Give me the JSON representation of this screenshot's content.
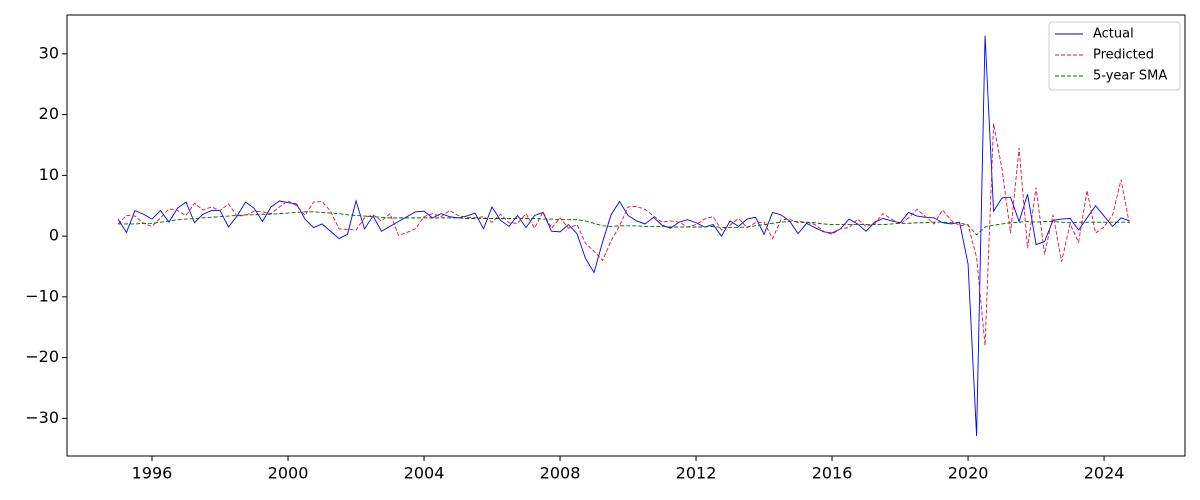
{
  "chart_data": {
    "type": "line",
    "x": [
      1995,
      1995.25,
      1995.5,
      1995.75,
      1996,
      1996.25,
      1996.5,
      1996.75,
      1997,
      1997.25,
      1997.5,
      1997.75,
      1998,
      1998.25,
      1998.5,
      1998.75,
      1999,
      1999.25,
      1999.5,
      1999.75,
      2000,
      2000.25,
      2000.5,
      2000.75,
      2001,
      2001.25,
      2001.5,
      2001.75,
      2002,
      2002.25,
      2002.5,
      2002.75,
      2003,
      2003.25,
      2003.5,
      2003.75,
      2004,
      2004.25,
      2004.5,
      2004.75,
      2005,
      2005.25,
      2005.5,
      2005.75,
      2006,
      2006.25,
      2006.5,
      2006.75,
      2007,
      2007.25,
      2007.5,
      2007.75,
      2008,
      2008.25,
      2008.5,
      2008.75,
      2009,
      2009.25,
      2009.5,
      2009.75,
      2010,
      2010.25,
      2010.5,
      2010.75,
      2011,
      2011.25,
      2011.5,
      2011.75,
      2012,
      2012.25,
      2012.5,
      2012.75,
      2013,
      2013.25,
      2013.5,
      2013.75,
      2014,
      2014.25,
      2014.5,
      2014.75,
      2015,
      2015.25,
      2015.5,
      2015.75,
      2016,
      2016.25,
      2016.5,
      2016.75,
      2017,
      2017.25,
      2017.5,
      2017.75,
      2018,
      2018.25,
      2018.5,
      2018.75,
      2019,
      2019.25,
      2019.5,
      2019.75,
      2020,
      2020.25,
      2020.5,
      2020.75,
      2021,
      2021.25,
      2021.5,
      2021.75,
      2022,
      2022.25,
      2022.5,
      2022.75,
      2023,
      2023.25,
      2023.5,
      2023.75,
      2024,
      2024.25,
      2024.5,
      2024.75
    ],
    "series": [
      {
        "name": "Actual",
        "color": "#0000ff",
        "dash": "none",
        "values": [
          2.8,
          0.6,
          4.2,
          3.6,
          2.8,
          4.2,
          2.3,
          4.6,
          5.6,
          2.2,
          3.6,
          4.2,
          4.2,
          1.5,
          3.3,
          5.6,
          4.6,
          2.4,
          4.8,
          5.8,
          5.5,
          5.3,
          2.8,
          1.4,
          2.0,
          0.8,
          -0.4,
          0.3,
          5.8,
          1.2,
          3.3,
          0.8,
          1.6,
          2.4,
          3.2,
          4.0,
          4.1,
          3.0,
          3.7,
          3.2,
          3.0,
          3.3,
          3.8,
          1.2,
          4.8,
          2.6,
          1.6,
          3.4,
          1.4,
          3.4,
          3.9,
          0.8,
          0.7,
          1.9,
          0.4,
          -3.7,
          -6.0,
          -1.0,
          3.5,
          5.7,
          3.4,
          2.5,
          2.0,
          3.1,
          1.8,
          1.3,
          2.3,
          2.7,
          2.2,
          1.5,
          1.9,
          0.0,
          2.5,
          1.6,
          2.8,
          3.1,
          0.3,
          3.9,
          3.5,
          2.5,
          0.4,
          2.1,
          1.4,
          0.7,
          0.5,
          1.2,
          2.8,
          2.0,
          0.8,
          2.3,
          2.9,
          2.5,
          2.2,
          3.9,
          3.3,
          3.1,
          3.0,
          2.2,
          2.0,
          2.3,
          -4.6,
          -32.9,
          33.0,
          4.1,
          6.3,
          6.4,
          2.4,
          6.9,
          -1.4,
          -0.9,
          2.6,
          2.8,
          2.9,
          1.0,
          3.0,
          5.0,
          3.3,
          1.6,
          3.0,
          2.5
        ]
      },
      {
        "name": "Predicted",
        "color": "#dc143c",
        "dash": "4 2",
        "values": [
          2.0,
          3.4,
          3.3,
          2.1,
          1.6,
          3.0,
          4.5,
          4.2,
          3.4,
          5.4,
          4.3,
          4.8,
          4.2,
          5.3,
          3.3,
          3.4,
          4.1,
          4.0,
          3.7,
          4.8,
          5.8,
          5.0,
          3.4,
          5.6,
          5.7,
          4.1,
          1.2,
          1.1,
          1.0,
          3.0,
          3.5,
          2.5,
          3.7,
          0.1,
          0.6,
          1.2,
          3.2,
          3.7,
          3.2,
          4.2,
          3.4,
          3.1,
          3.0,
          3.2,
          2.3,
          3.6,
          2.2,
          2.1,
          3.7,
          1.3,
          4.0,
          1.3,
          3.0,
          1.3,
          1.9,
          -1.2,
          -2.5,
          -4.0,
          -0.8,
          1.7,
          4.8,
          4.9,
          4.4,
          3.3,
          2.3,
          2.5,
          2.3,
          1.5,
          1.9,
          2.8,
          3.2,
          1.0,
          1.8,
          2.9,
          1.4,
          2.2,
          2.3,
          -0.4,
          2.7,
          2.8,
          2.2,
          2.3,
          1.9,
          0.8,
          0.3,
          1.2,
          1.4,
          2.8,
          1.6,
          2.0,
          3.7,
          2.8,
          2.0,
          3.0,
          4.4,
          3.2,
          2.0,
          4.3,
          2.6,
          1.7,
          1.9,
          -3.5,
          -18.0,
          18.5,
          11.0,
          0.5,
          14.5,
          -2.0,
          8.0,
          -3.0,
          3.5,
          -4.2,
          2.0,
          -1.0,
          7.5,
          0.5,
          1.5,
          3.5,
          9.3,
          1.8
        ]
      },
      {
        "name": "5-year SMA",
        "color": "#006400",
        "dash": "4 2",
        "values": [
          2.0,
          2.0,
          2.0,
          2.1,
          2.1,
          2.3,
          2.5,
          2.7,
          2.8,
          2.9,
          3.0,
          3.1,
          3.2,
          3.3,
          3.4,
          3.5,
          3.5,
          3.6,
          3.6,
          3.7,
          3.8,
          3.9,
          4.0,
          4.0,
          3.9,
          3.8,
          3.7,
          3.5,
          3.4,
          3.3,
          3.2,
          3.1,
          3.0,
          3.0,
          3.0,
          3.0,
          3.0,
          3.0,
          3.0,
          3.0,
          3.0,
          2.9,
          2.9,
          2.9,
          2.9,
          2.9,
          2.9,
          2.9,
          2.9,
          2.9,
          2.8,
          2.8,
          2.7,
          2.7,
          2.7,
          2.5,
          2.1,
          1.7,
          1.6,
          1.7,
          1.7,
          1.7,
          1.6,
          1.6,
          1.6,
          1.5,
          1.5,
          1.5,
          1.5,
          1.5,
          1.6,
          1.4,
          1.4,
          1.4,
          1.5,
          1.7,
          1.9,
          2.1,
          2.3,
          2.4,
          2.4,
          2.3,
          2.2,
          2.0,
          1.9,
          1.9,
          1.9,
          1.9,
          1.9,
          1.9,
          1.9,
          2.0,
          2.1,
          2.1,
          2.2,
          2.2,
          2.3,
          2.3,
          2.2,
          2.2,
          1.8,
          0.2,
          1.5,
          1.8,
          2.0,
          2.2,
          2.3,
          2.4,
          2.3,
          2.4,
          2.4,
          2.3,
          2.2,
          2.3,
          2.3,
          2.3,
          2.3,
          2.3,
          2.3,
          2.3
        ]
      }
    ],
    "xlim": [
      1993.5,
      2026.38
    ],
    "ylim": [
      -36.2,
      36.4
    ],
    "xticks": [
      1996,
      2000,
      2004,
      2008,
      2012,
      2016,
      2020,
      2024
    ],
    "yticks": [
      {
        "value": -30,
        "label": "−30"
      },
      {
        "value": -20,
        "label": "−20"
      },
      {
        "value": -10,
        "label": "−10"
      },
      0,
      10,
      20,
      30
    ],
    "grid": false,
    "legend": "upper right"
  }
}
